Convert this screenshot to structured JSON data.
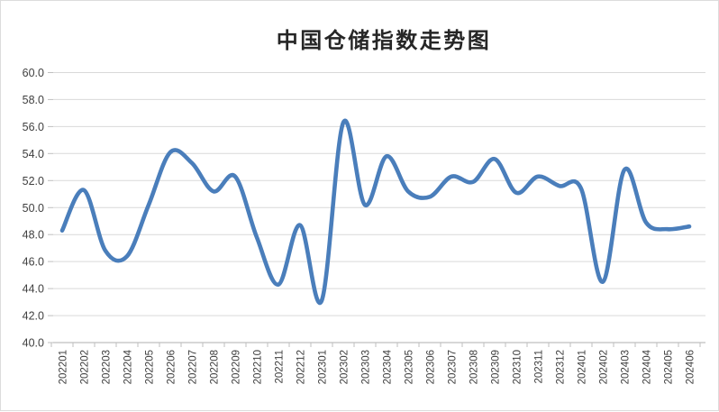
{
  "page": {
    "background": "#ffffff",
    "frame_border_color": "#dcdcdc"
  },
  "chart_data": {
    "type": "line",
    "title": "中国仓储指数走势图",
    "xlabel": "",
    "ylabel": "",
    "categories": [
      "202201",
      "202202",
      "202203",
      "202204",
      "202205",
      "202206",
      "202207",
      "202208",
      "202209",
      "202210",
      "202211",
      "202212",
      "202301",
      "202302",
      "202303",
      "202304",
      "202305",
      "202306",
      "202307",
      "202308",
      "202309",
      "202310",
      "202311",
      "202312",
      "202401",
      "202402",
      "202403",
      "202404",
      "202405",
      "202406"
    ],
    "values": [
      48.3,
      51.3,
      46.8,
      46.4,
      50.2,
      54.1,
      53.3,
      51.2,
      52.3,
      47.8,
      44.3,
      48.7,
      43.1,
      56.3,
      50.2,
      53.8,
      51.2,
      50.8,
      52.3,
      51.9,
      53.6,
      51.1,
      52.3,
      51.6,
      51.4,
      44.5,
      52.8,
      48.9,
      48.4,
      48.6
    ],
    "ylim": [
      40.0,
      60.0
    ],
    "ytick_step": 2.0,
    "ytick_labels": [
      "60.0",
      "58.0",
      "56.0",
      "54.0",
      "52.0",
      "50.0",
      "48.0",
      "46.0",
      "44.0",
      "42.0",
      "40.0"
    ],
    "grid": "horizontal-only",
    "legend": "none",
    "smooth": true,
    "line_color": "#4a7ebb",
    "grid_color": "#d9d9d9",
    "axis_color": "#bfbfbf",
    "label_color": "#404040",
    "title_color": "#262626"
  }
}
